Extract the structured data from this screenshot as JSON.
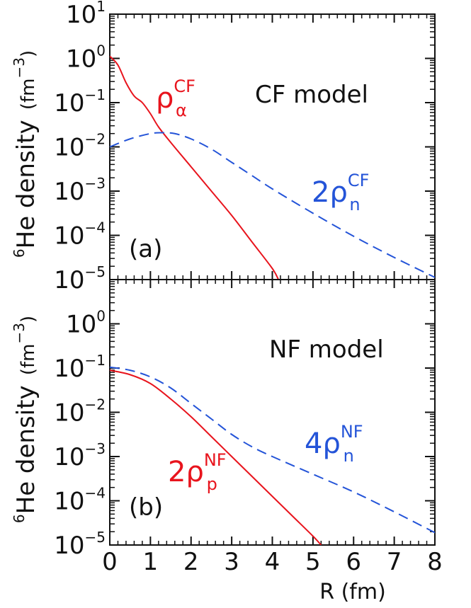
{
  "chart_data": [
    {
      "type": "line",
      "panel_tag": "(a)",
      "model_label": "CF model",
      "ylabel": "He density",
      "ylabel_prefix_sup": "6",
      "ylabel_units": "(fm",
      "ylabel_units_sup": "−3",
      "ylabel_units_close": ")",
      "yscale": "log",
      "ylim_exp": [
        -5,
        1
      ],
      "yticks": [
        {
          "base": "10",
          "exp": "1"
        },
        {
          "base": "10",
          "exp": "0"
        },
        {
          "base": "10",
          "exp": "−1"
        },
        {
          "base": "10",
          "exp": "−2"
        },
        {
          "base": "10",
          "exp": "−3"
        },
        {
          "base": "10",
          "exp": "−4"
        },
        {
          "base": "10",
          "exp": "−5"
        }
      ],
      "xlim": [
        0,
        8
      ],
      "series": [
        {
          "name": "rho_alpha_CF",
          "label_main": "ρ",
          "label_sub": "α",
          "label_sup": "CF",
          "color": "#e8141d",
          "style": "solid",
          "x": [
            0,
            0.2,
            0.4,
            0.6,
            0.8,
            1.0,
            1.2,
            1.5,
            2.0,
            2.5,
            3.0,
            3.5,
            4.0,
            4.15
          ],
          "y_log10": [
            0.05,
            -0.15,
            -0.55,
            -0.85,
            -1.0,
            -1.25,
            -1.55,
            -1.9,
            -2.45,
            -3.0,
            -3.55,
            -4.15,
            -4.75,
            -5.0
          ]
        },
        {
          "name": "2rho_n_CF",
          "label_prefix": "2",
          "label_main": "ρ",
          "label_sub": "n",
          "label_sup": "CF",
          "color": "#2454d8",
          "style": "dashed",
          "x": [
            0,
            0.5,
            1.0,
            1.3,
            1.6,
            2.0,
            2.5,
            3.0,
            3.5,
            4.0,
            5.0,
            6.0,
            7.0,
            8.0
          ],
          "y_log10": [
            -2.0,
            -1.82,
            -1.7,
            -1.68,
            -1.7,
            -1.82,
            -2.05,
            -2.35,
            -2.65,
            -2.95,
            -3.5,
            -4.02,
            -4.5,
            -4.95
          ]
        }
      ]
    },
    {
      "type": "line",
      "panel_tag": "(b)",
      "model_label": "NF model",
      "ylabel": "He density",
      "ylabel_prefix_sup": "6",
      "ylabel_units": "(fm",
      "ylabel_units_sup": "−3",
      "ylabel_units_close": ")",
      "yscale": "log",
      "ylim_exp": [
        -5,
        1
      ],
      "yticks": [
        {
          "base": "10",
          "exp": "0"
        },
        {
          "base": "10",
          "exp": "−1"
        },
        {
          "base": "10",
          "exp": "−2"
        },
        {
          "base": "10",
          "exp": "−3"
        },
        {
          "base": "10",
          "exp": "−4"
        },
        {
          "base": "10",
          "exp": "−5"
        }
      ],
      "xlabel": "R  (fm)",
      "xlim": [
        0,
        8
      ],
      "xticks": [
        "0",
        "1",
        "2",
        "3",
        "4",
        "5",
        "6",
        "7",
        "8"
      ],
      "series": [
        {
          "name": "2rho_p_NF",
          "label_prefix": "2",
          "label_main": "ρ",
          "label_sub": "p",
          "label_sup": "NF",
          "color": "#e8141d",
          "style": "solid",
          "x": [
            0,
            0.5,
            1.0,
            1.5,
            2.0,
            2.5,
            3.0,
            3.5,
            4.0,
            4.5,
            5.0,
            5.2
          ],
          "y_log10": [
            -1.05,
            -1.15,
            -1.35,
            -1.7,
            -2.1,
            -2.55,
            -3.0,
            -3.45,
            -3.9,
            -4.35,
            -4.8,
            -5.0
          ]
        },
        {
          "name": "4rho_n_NF",
          "label_prefix": "4",
          "label_main": "ρ",
          "label_sub": "n",
          "label_sup": "NF",
          "color": "#2454d8",
          "style": "dashed",
          "x": [
            0,
            0.5,
            1.0,
            1.5,
            2.0,
            2.5,
            3.0,
            3.5,
            4.0,
            5.0,
            6.0,
            7.0,
            8.0
          ],
          "y_log10": [
            -0.98,
            -1.05,
            -1.2,
            -1.45,
            -1.8,
            -2.15,
            -2.5,
            -2.78,
            -3.0,
            -3.4,
            -3.8,
            -4.25,
            -4.72
          ]
        }
      ]
    }
  ]
}
